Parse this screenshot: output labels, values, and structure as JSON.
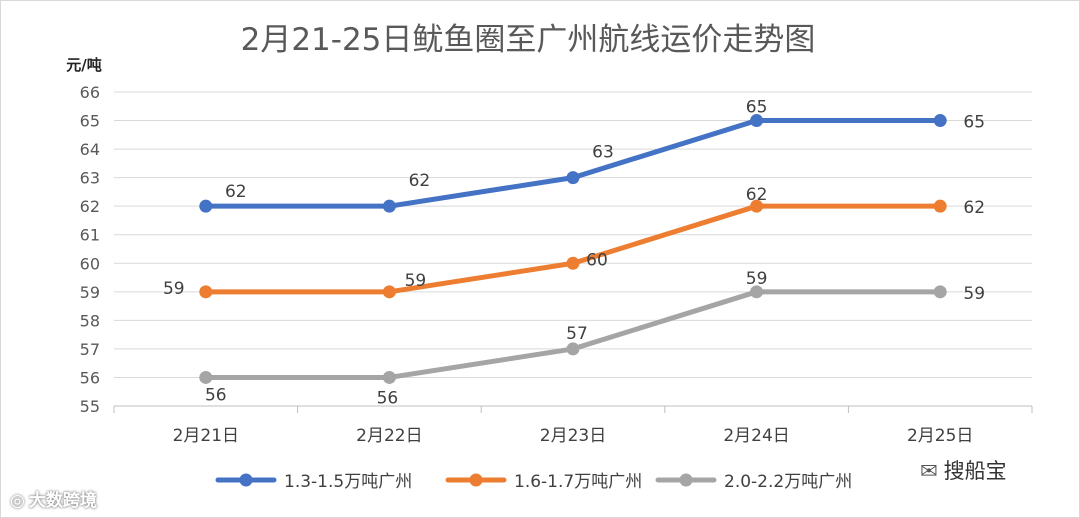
{
  "chart_data": {
    "type": "line",
    "title": "2月21-25日鱿鱼圈至广州航线运价走势图",
    "ylabel": "元/吨",
    "xlabel": "",
    "categories": [
      "2月21日",
      "2月22日",
      "2月23日",
      "2月24日",
      "2月25日"
    ],
    "ylim": [
      55,
      66
    ],
    "yticks": [
      55,
      56,
      57,
      58,
      59,
      60,
      61,
      62,
      63,
      64,
      65,
      66
    ],
    "grid": true,
    "legend_position": "bottom",
    "series": [
      {
        "name": "1.3-1.5万吨广州",
        "color": "#4472C4",
        "values": [
          62,
          62,
          63,
          65,
          65
        ]
      },
      {
        "name": "1.6-1.7万吨广州",
        "color": "#ED7D31",
        "values": [
          59,
          59,
          60,
          62,
          62
        ]
      },
      {
        "name": "2.0-2.2万吨广州",
        "color": "#A5A5A5",
        "values": [
          56,
          56,
          57,
          59,
          59
        ]
      }
    ]
  },
  "watermarks": {
    "left": {
      "icon": "weibo-icon",
      "text": "大数跨境"
    },
    "right": {
      "icon": "wechat-icon",
      "text": "搜船宝"
    }
  }
}
